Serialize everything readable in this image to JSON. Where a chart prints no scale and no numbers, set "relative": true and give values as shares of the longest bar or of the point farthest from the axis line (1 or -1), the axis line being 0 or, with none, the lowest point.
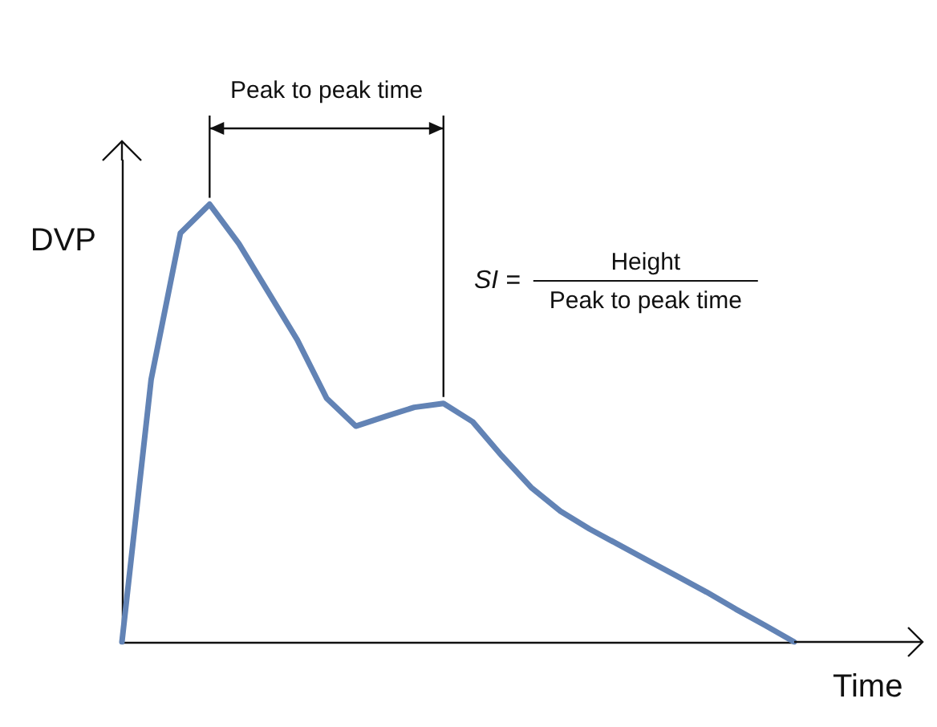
{
  "chart_data": {
    "type": "line",
    "relative": true,
    "xlabel": "Time",
    "ylabel": "DVP",
    "tick_labels": false,
    "grid": false,
    "marker": "none",
    "line_style": "solid",
    "categories": [
      null,
      null,
      null,
      null,
      null,
      null,
      null,
      null,
      null,
      null,
      null,
      null,
      null,
      null,
      null,
      null,
      null,
      null,
      null,
      null,
      null,
      null,
      null,
      null
    ],
    "series": [
      {
        "color": "#6283b5",
        "values": [
          0,
          0.6,
          0.934,
          1,
          0.91,
          0.8,
          0.69,
          0.557,
          0.493,
          0.515,
          0.536,
          0.545,
          0.503,
          0.425,
          0.353,
          0.299,
          0.258,
          0.222,
          0.186,
          0.15,
          0.114,
          0.075,
          0.038,
          0
        ]
      }
    ],
    "annotations": [
      "Peak to peak time",
      "SI =",
      "Height",
      "Peak to peak time"
    ]
  }
}
